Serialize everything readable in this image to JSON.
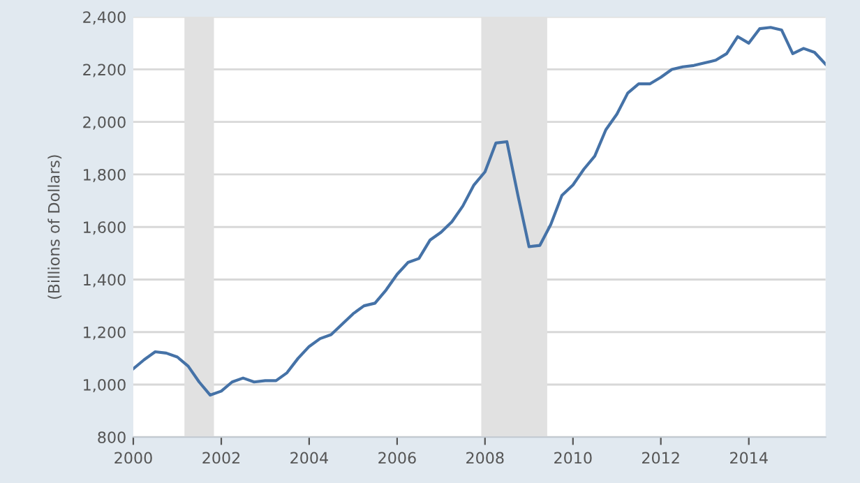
{
  "chart_data": {
    "type": "line",
    "ylabel": "(Billions of Dollars)",
    "x": [
      "2000-01-01",
      "2000-04-01",
      "2000-07-01",
      "2000-10-01",
      "2001-01-01",
      "2001-04-01",
      "2001-07-01",
      "2001-10-01",
      "2002-01-01",
      "2002-04-01",
      "2002-07-01",
      "2002-10-01",
      "2003-01-01",
      "2003-04-01",
      "2003-07-01",
      "2003-10-01",
      "2004-01-01",
      "2004-04-01",
      "2004-07-01",
      "2004-10-01",
      "2005-01-01",
      "2005-04-01",
      "2005-07-01",
      "2005-10-01",
      "2006-01-01",
      "2006-04-01",
      "2006-07-01",
      "2006-10-01",
      "2007-01-01",
      "2007-04-01",
      "2007-07-01",
      "2007-10-01",
      "2008-01-01",
      "2008-04-01",
      "2008-07-01",
      "2008-10-01",
      "2009-01-01",
      "2009-04-01",
      "2009-07-01",
      "2009-10-01",
      "2010-01-01",
      "2010-04-01",
      "2010-07-01",
      "2010-10-01",
      "2011-01-01",
      "2011-04-01",
      "2011-07-01",
      "2011-10-01",
      "2012-01-01",
      "2012-04-01",
      "2012-07-01",
      "2012-10-01",
      "2013-01-01",
      "2013-04-01",
      "2013-07-01",
      "2013-10-01",
      "2014-01-01",
      "2014-04-01",
      "2014-07-01",
      "2014-10-01",
      "2015-01-01",
      "2015-04-01",
      "2015-07-01",
      "2015-10-01"
    ],
    "series": [
      {
        "color": "#4572a7",
        "values": [
          1060,
          1095,
          1125,
          1120,
          1105,
          1070,
          1010,
          960,
          975,
          1010,
          1025,
          1010,
          1015,
          1015,
          1045,
          1100,
          1145,
          1175,
          1190,
          1230,
          1270,
          1300,
          1310,
          1360,
          1420,
          1465,
          1480,
          1550,
          1580,
          1620,
          1680,
          1760,
          1810,
          1920,
          1925,
          1720,
          1525,
          1530,
          1610,
          1720,
          1760,
          1820,
          1870,
          1970,
          2030,
          2110,
          2145,
          2145,
          2170,
          2200,
          2210,
          2215,
          2225,
          2235,
          2260,
          2325,
          2300,
          2355,
          2360,
          2350,
          2260,
          2280,
          2265,
          2220
        ]
      }
    ],
    "xlim": [
      "2000-01-01",
      "2015-10-01"
    ],
    "xticks": [
      {
        "value": "2000-01-01",
        "label": "2000"
      },
      {
        "value": "2002-01-01",
        "label": "2002"
      },
      {
        "value": "2004-01-01",
        "label": "2004"
      },
      {
        "value": "2006-01-01",
        "label": "2006"
      },
      {
        "value": "2008-01-01",
        "label": "2008"
      },
      {
        "value": "2010-01-01",
        "label": "2010"
      },
      {
        "value": "2012-01-01",
        "label": "2012"
      },
      {
        "value": "2014-01-01",
        "label": "2014"
      }
    ],
    "ylim": [
      800,
      2400
    ],
    "yticks": [
      {
        "value": 800,
        "label": "800"
      },
      {
        "value": 1000,
        "label": "1,000"
      },
      {
        "value": 1200,
        "label": "1,200"
      },
      {
        "value": 1400,
        "label": "1,400"
      },
      {
        "value": 1600,
        "label": "1,600"
      },
      {
        "value": 1800,
        "label": "1,800"
      },
      {
        "value": 2000,
        "label": "2,000"
      },
      {
        "value": 2200,
        "label": "2,200"
      },
      {
        "value": 2400,
        "label": "2,400"
      }
    ],
    "bands": [
      {
        "axis": "x",
        "from": "2001-03-01",
        "to": "2001-11-01",
        "color": "#e1e1e1"
      },
      {
        "axis": "x",
        "from": "2007-12-01",
        "to": "2009-06-01",
        "color": "#e1e1e1"
      }
    ],
    "grid": "y",
    "marker": "none",
    "line_style": "solid"
  }
}
